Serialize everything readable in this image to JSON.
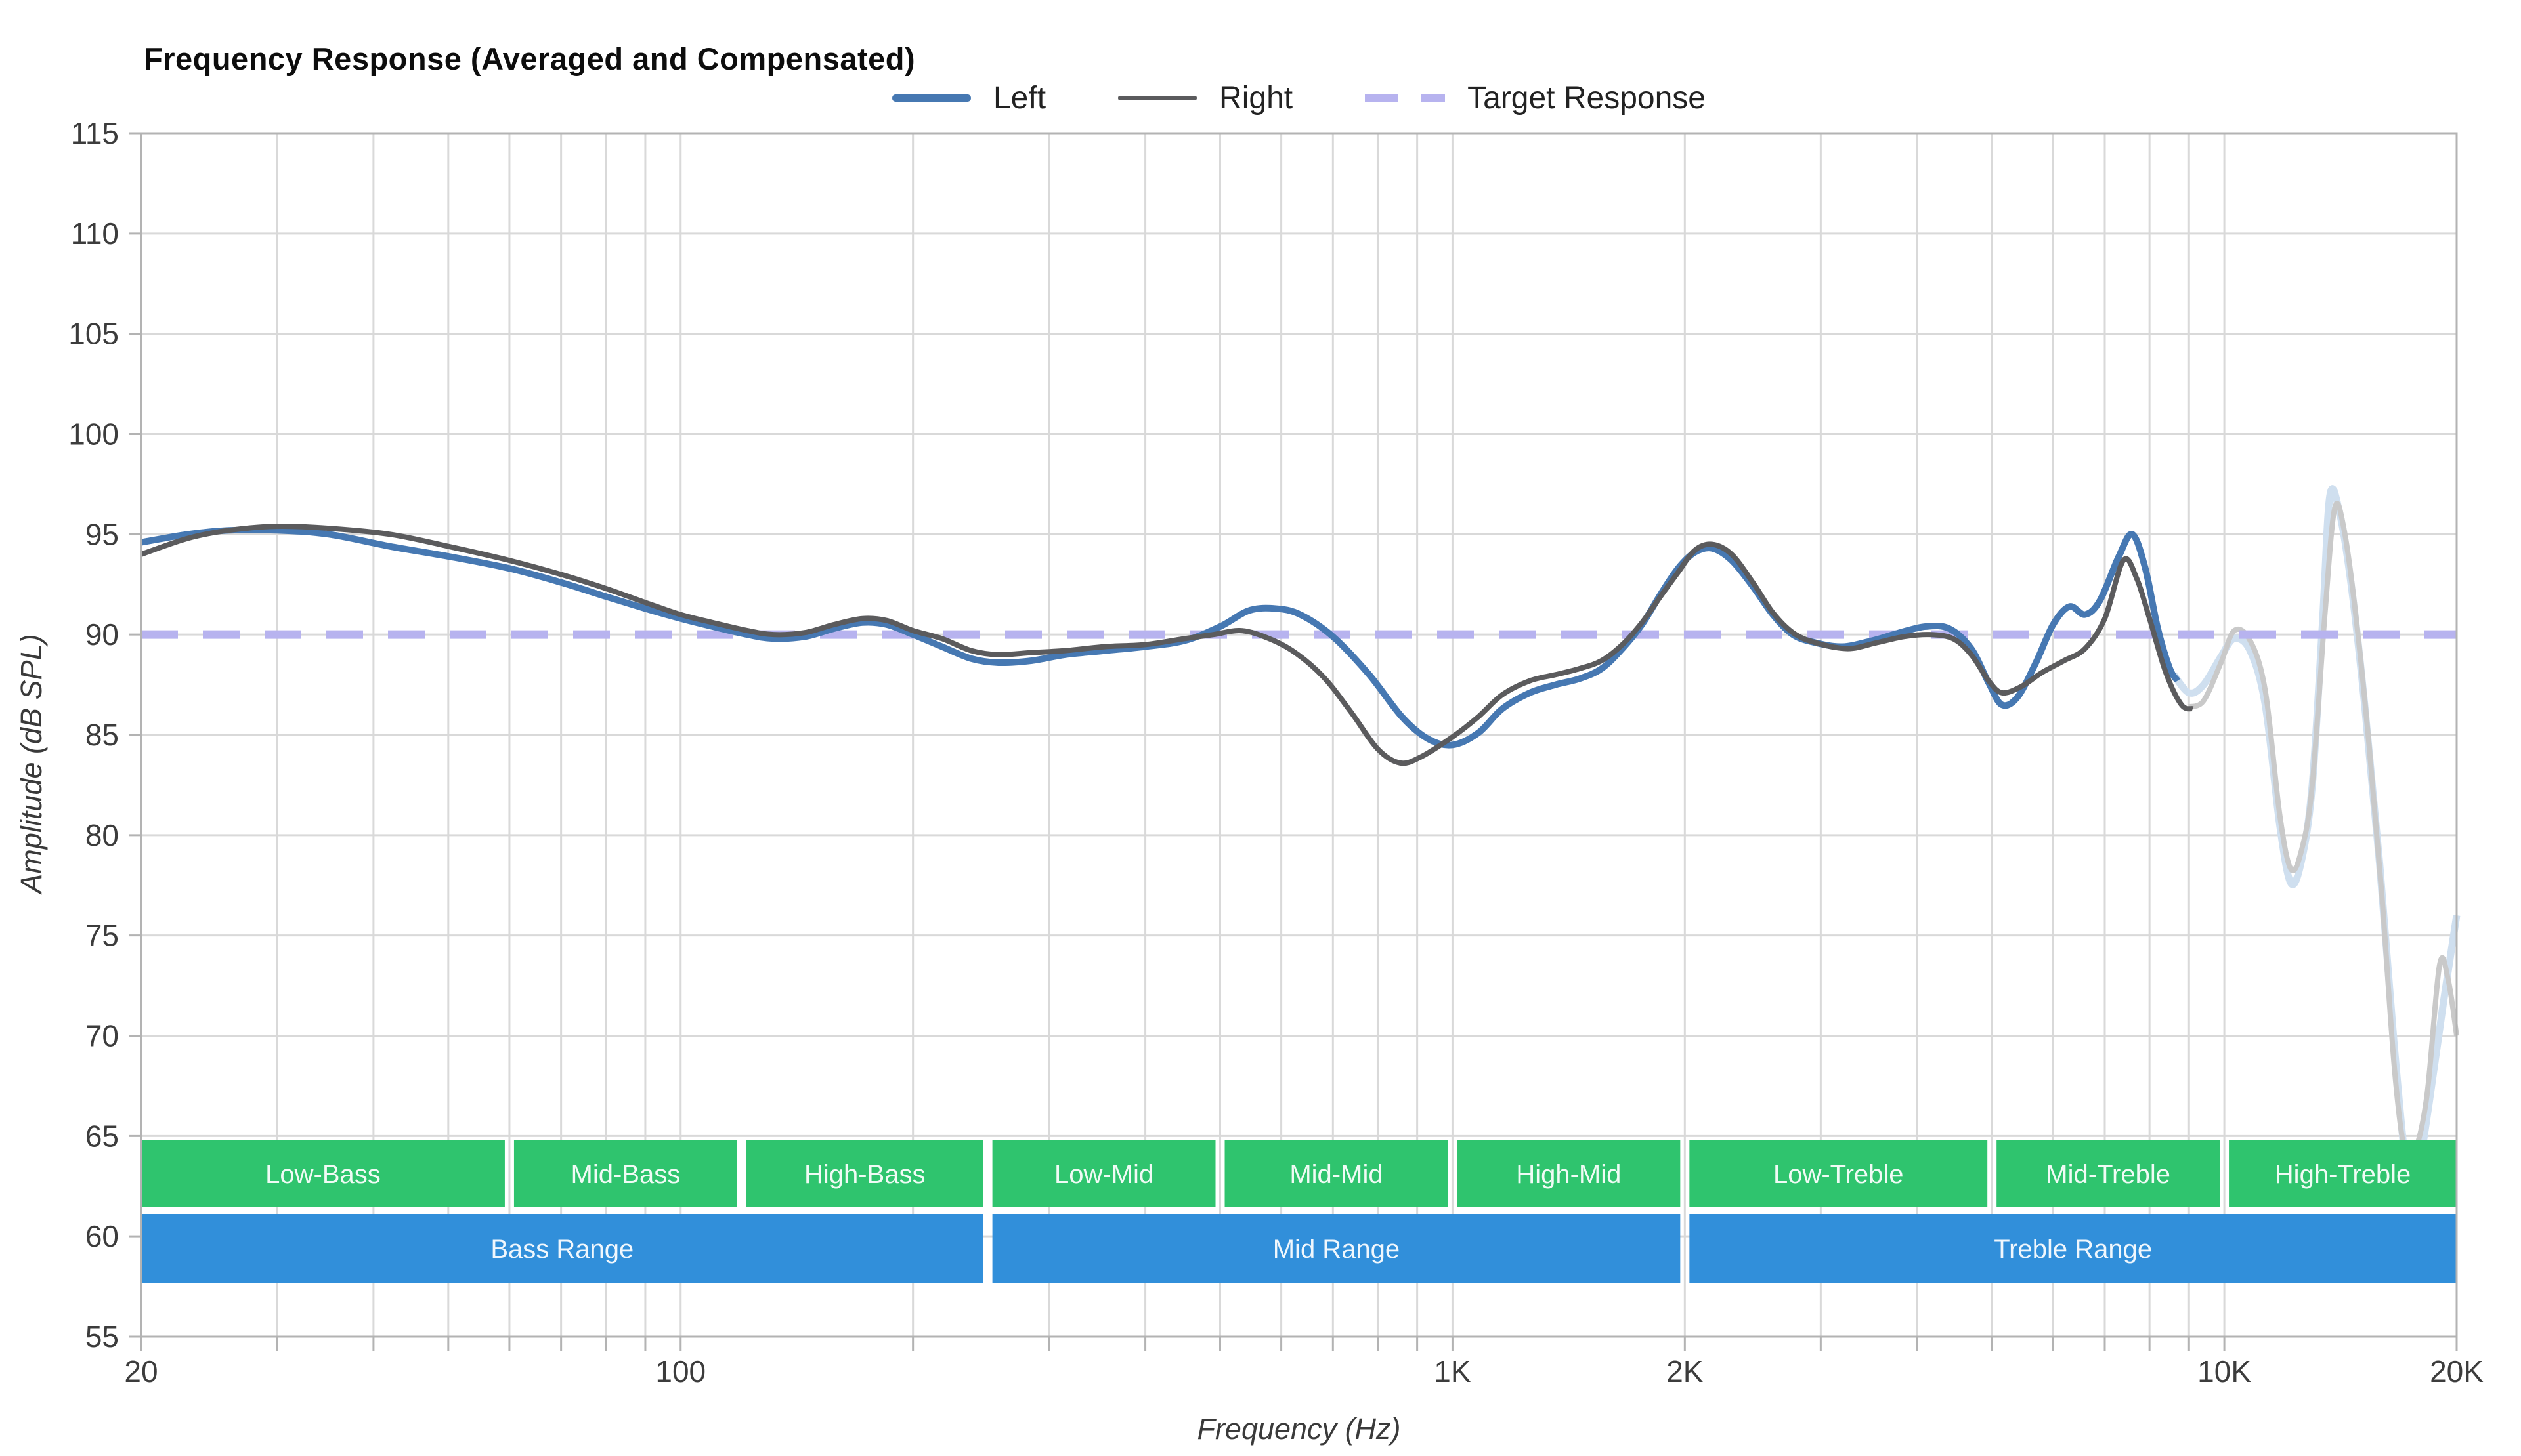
{
  "title": "Frequency Response (Averaged and Compensated)",
  "legend": {
    "items": [
      {
        "id": "left",
        "label": "Left",
        "color": "#4678b2",
        "style": "solid"
      },
      {
        "id": "right",
        "label": "Right",
        "color": "#5b5b5d",
        "style": "solid"
      },
      {
        "id": "target",
        "label": "Target Response",
        "color": "#b7b3ef",
        "style": "dashed"
      }
    ]
  },
  "axis": {
    "x": {
      "title": "Frequency (Hz)",
      "scale": "log",
      "min": 20,
      "max": 20000,
      "ticks": [
        {
          "f": 20,
          "label": "20"
        },
        {
          "f": 100,
          "label": "100"
        },
        {
          "f": 1000,
          "label": "1K"
        },
        {
          "f": 2000,
          "label": "2K"
        },
        {
          "f": 10000,
          "label": "10K"
        },
        {
          "f": 20000,
          "label": "20K"
        }
      ]
    },
    "y": {
      "title": "Amplitude (dB SPL)",
      "min": 55,
      "max": 115,
      "step": 5,
      "ticks": [
        115,
        110,
        105,
        100,
        95,
        90,
        85,
        80,
        75,
        70,
        65,
        60,
        55
      ]
    }
  },
  "bands": {
    "green_color": "#2fc46e",
    "blue_color": "#318fda",
    "label_color": "rgba(255,255,255,0.93)",
    "sub_bands": [
      {
        "label": "Low-Bass",
        "from": 20,
        "to": 60
      },
      {
        "label": "Mid-Bass",
        "from": 60,
        "to": 120
      },
      {
        "label": "High-Bass",
        "from": 120,
        "to": 250
      },
      {
        "label": "Low-Mid",
        "from": 250,
        "to": 500
      },
      {
        "label": "Mid-Mid",
        "from": 500,
        "to": 1000
      },
      {
        "label": "High-Mid",
        "from": 1000,
        "to": 2000
      },
      {
        "label": "Low-Treble",
        "from": 2000,
        "to": 5000
      },
      {
        "label": "Mid-Treble",
        "from": 5000,
        "to": 10000
      },
      {
        "label": "High-Treble",
        "from": 10000,
        "to": 20000
      }
    ],
    "ranges": [
      {
        "label": "Bass Range",
        "from": 20,
        "to": 250
      },
      {
        "label": "Mid Range",
        "from": 250,
        "to": 2000
      },
      {
        "label": "Treble Range",
        "from": 2000,
        "to": 20000
      }
    ]
  },
  "chart_data": {
    "type": "line",
    "x_scale": "log",
    "xlim": [
      20,
      20000
    ],
    "ylim": [
      55,
      115
    ],
    "grid": true,
    "legend_position": "top",
    "target_value": 90,
    "grid_color": "#d9d9d9",
    "frame_color": "#b3b3b3",
    "series": [
      {
        "name": "left-faded",
        "color": "#cfdfef",
        "width": 11,
        "dash": null,
        "points": [
          [
            8600,
            88.0
          ],
          [
            9000,
            87.1
          ],
          [
            9400,
            87.5
          ],
          [
            9900,
            88.9
          ],
          [
            10300,
            89.8
          ],
          [
            10800,
            89.2
          ],
          [
            11300,
            86.5
          ],
          [
            11800,
            80.5
          ],
          [
            12200,
            77.6
          ],
          [
            12600,
            78.8
          ],
          [
            13000,
            82.5
          ],
          [
            13400,
            90.5
          ],
          [
            13700,
            96.9
          ],
          [
            14100,
            96.1
          ],
          [
            14600,
            92.5
          ],
          [
            15200,
            86.5
          ],
          [
            15900,
            78.5
          ],
          [
            16600,
            69.5
          ],
          [
            17300,
            62.8
          ],
          [
            17800,
            63.2
          ],
          [
            18400,
            66.5
          ],
          [
            19200,
            71.5
          ],
          [
            20000,
            76.0
          ]
        ]
      },
      {
        "name": "right-faded",
        "color": "#c9c9c9",
        "width": 8,
        "dash": null,
        "points": [
          [
            9000,
            86.4
          ],
          [
            9400,
            86.7
          ],
          [
            9900,
            88.6
          ],
          [
            10300,
            90.2
          ],
          [
            10800,
            89.7
          ],
          [
            11300,
            87.2
          ],
          [
            11800,
            81.0
          ],
          [
            12200,
            78.3
          ],
          [
            12600,
            79.3
          ],
          [
            13000,
            82.5
          ],
          [
            13500,
            91.0
          ],
          [
            13900,
            96.3
          ],
          [
            14300,
            95.2
          ],
          [
            14800,
            91.0
          ],
          [
            15400,
            84.5
          ],
          [
            16000,
            77.0
          ],
          [
            16600,
            68.5
          ],
          [
            17100,
            64.4
          ],
          [
            17600,
            64.1
          ],
          [
            18300,
            67.0
          ],
          [
            19000,
            73.5
          ],
          [
            19500,
            72.8
          ],
          [
            20000,
            70.0
          ]
        ]
      },
      {
        "name": "target",
        "color": "#b7b3ef",
        "width": 13,
        "dash": "56 38",
        "points": [
          [
            20,
            90
          ],
          [
            20000,
            90
          ]
        ]
      },
      {
        "name": "left",
        "color": "#4678b2",
        "width": 10,
        "dash": null,
        "points": [
          [
            20,
            94.6
          ],
          [
            23,
            95.0
          ],
          [
            26,
            95.2
          ],
          [
            30,
            95.2
          ],
          [
            35,
            95.0
          ],
          [
            42,
            94.4
          ],
          [
            50,
            93.9
          ],
          [
            60,
            93.3
          ],
          [
            70,
            92.6
          ],
          [
            80,
            91.9
          ],
          [
            90,
            91.3
          ],
          [
            100,
            90.8
          ],
          [
            110,
            90.4
          ],
          [
            122,
            90.0
          ],
          [
            132,
            89.8
          ],
          [
            145,
            89.9
          ],
          [
            158,
            90.3
          ],
          [
            172,
            90.6
          ],
          [
            185,
            90.5
          ],
          [
            200,
            90.0
          ],
          [
            218,
            89.4
          ],
          [
            238,
            88.8
          ],
          [
            258,
            88.6
          ],
          [
            285,
            88.7
          ],
          [
            315,
            89.0
          ],
          [
            355,
            89.2
          ],
          [
            400,
            89.4
          ],
          [
            450,
            89.7
          ],
          [
            500,
            90.4
          ],
          [
            545,
            91.2
          ],
          [
            590,
            91.3
          ],
          [
            635,
            91.0
          ],
          [
            700,
            89.9
          ],
          [
            780,
            88.0
          ],
          [
            860,
            85.9
          ],
          [
            930,
            84.8
          ],
          [
            1000,
            84.5
          ],
          [
            1080,
            85.1
          ],
          [
            1160,
            86.3
          ],
          [
            1260,
            87.1
          ],
          [
            1360,
            87.5
          ],
          [
            1460,
            87.8
          ],
          [
            1560,
            88.3
          ],
          [
            1660,
            89.3
          ],
          [
            1760,
            90.5
          ],
          [
            1860,
            92.0
          ],
          [
            1960,
            93.3
          ],
          [
            2060,
            94.1
          ],
          [
            2170,
            94.3
          ],
          [
            2300,
            93.7
          ],
          [
            2450,
            92.4
          ],
          [
            2600,
            91.0
          ],
          [
            2760,
            90.0
          ],
          [
            2950,
            89.6
          ],
          [
            3200,
            89.4
          ],
          [
            3500,
            89.7
          ],
          [
            3800,
            90.1
          ],
          [
            4100,
            90.4
          ],
          [
            4400,
            90.3
          ],
          [
            4700,
            89.3
          ],
          [
            4950,
            87.6
          ],
          [
            5150,
            86.5
          ],
          [
            5400,
            86.9
          ],
          [
            5700,
            88.6
          ],
          [
            6000,
            90.5
          ],
          [
            6300,
            91.4
          ],
          [
            6600,
            91.0
          ],
          [
            6900,
            91.7
          ],
          [
            7300,
            93.9
          ],
          [
            7600,
            95.0
          ],
          [
            7900,
            93.3
          ],
          [
            8200,
            90.3
          ],
          [
            8500,
            88.3
          ],
          [
            8700,
            87.7
          ]
        ]
      },
      {
        "name": "right",
        "color": "#5b5b5d",
        "width": 8,
        "dash": null,
        "points": [
          [
            20,
            94.0
          ],
          [
            23,
            94.8
          ],
          [
            26,
            95.2
          ],
          [
            30,
            95.4
          ],
          [
            35,
            95.3
          ],
          [
            42,
            95.0
          ],
          [
            50,
            94.4
          ],
          [
            60,
            93.7
          ],
          [
            70,
            93.0
          ],
          [
            80,
            92.3
          ],
          [
            90,
            91.6
          ],
          [
            100,
            91.0
          ],
          [
            110,
            90.6
          ],
          [
            122,
            90.2
          ],
          [
            132,
            90.0
          ],
          [
            145,
            90.1
          ],
          [
            158,
            90.5
          ],
          [
            172,
            90.8
          ],
          [
            185,
            90.7
          ],
          [
            200,
            90.2
          ],
          [
            218,
            89.8
          ],
          [
            238,
            89.2
          ],
          [
            258,
            89.0
          ],
          [
            285,
            89.1
          ],
          [
            315,
            89.2
          ],
          [
            355,
            89.4
          ],
          [
            400,
            89.5
          ],
          [
            450,
            89.8
          ],
          [
            490,
            90.0
          ],
          [
            530,
            90.2
          ],
          [
            570,
            89.9
          ],
          [
            620,
            89.2
          ],
          [
            680,
            87.9
          ],
          [
            740,
            86.1
          ],
          [
            800,
            84.3
          ],
          [
            855,
            83.6
          ],
          [
            910,
            83.9
          ],
          [
            1000,
            84.9
          ],
          [
            1080,
            85.9
          ],
          [
            1160,
            87.0
          ],
          [
            1260,
            87.7
          ],
          [
            1360,
            88.0
          ],
          [
            1460,
            88.3
          ],
          [
            1560,
            88.7
          ],
          [
            1660,
            89.5
          ],
          [
            1760,
            90.6
          ],
          [
            1860,
            91.9
          ],
          [
            1960,
            93.1
          ],
          [
            2060,
            94.2
          ],
          [
            2170,
            94.5
          ],
          [
            2300,
            94.0
          ],
          [
            2450,
            92.6
          ],
          [
            2600,
            91.1
          ],
          [
            2760,
            90.1
          ],
          [
            2950,
            89.6
          ],
          [
            3250,
            89.3
          ],
          [
            3550,
            89.6
          ],
          [
            3850,
            89.9
          ],
          [
            4150,
            90.0
          ],
          [
            4450,
            89.8
          ],
          [
            4700,
            89.0
          ],
          [
            4950,
            87.7
          ],
          [
            5150,
            87.1
          ],
          [
            5450,
            87.4
          ],
          [
            5800,
            88.1
          ],
          [
            6200,
            88.7
          ],
          [
            6600,
            89.3
          ],
          [
            7000,
            90.8
          ],
          [
            7400,
            93.7
          ],
          [
            7700,
            92.8
          ],
          [
            8000,
            90.8
          ],
          [
            8400,
            88.1
          ],
          [
            8800,
            86.5
          ],
          [
            9100,
            86.3
          ]
        ]
      }
    ]
  }
}
